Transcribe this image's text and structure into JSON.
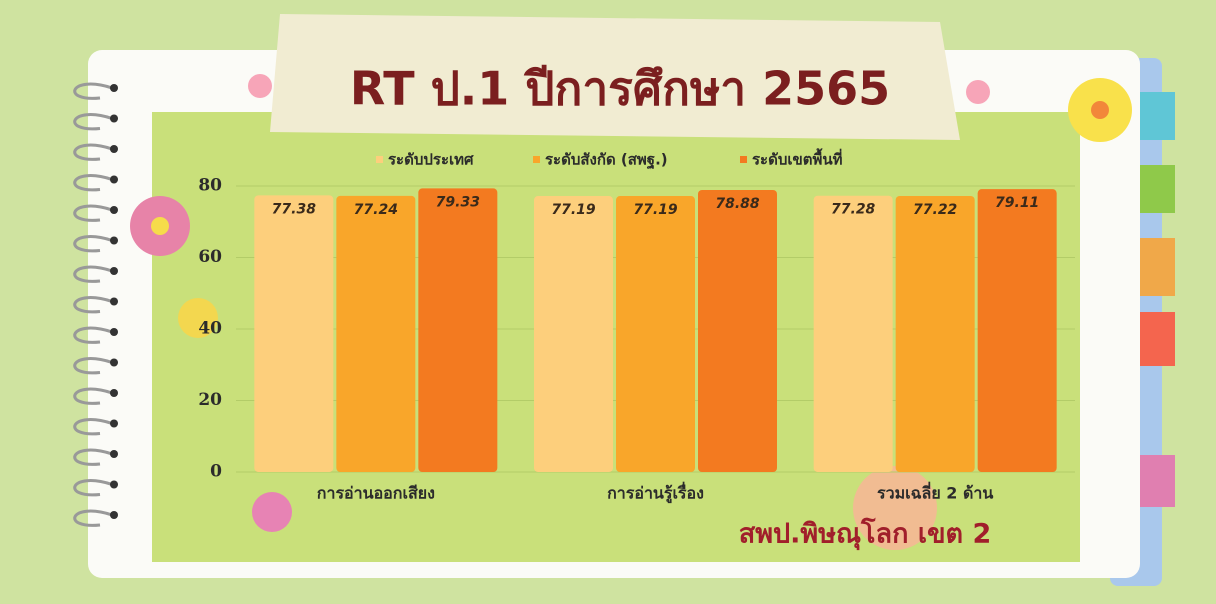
{
  "chart_data": {
    "type": "bar",
    "title": "RT ป.1 ปีการศึกษา 2565",
    "annotation": "สพป.พิษณุโลก เขต 2",
    "categories": [
      "การอ่านออกเสียง",
      "การอ่านรู้เรื่อง",
      "รวมเฉลี่ย 2 ด้าน"
    ],
    "series": [
      {
        "name": "ระดับประเทศ",
        "color": "#fdcf7c",
        "values": [
          77.38,
          77.19,
          77.28
        ]
      },
      {
        "name": "ระดับสังกัด (สพฐ.)",
        "color": "#f9a62a",
        "values": [
          77.24,
          77.19,
          77.22
        ]
      },
      {
        "name": "ระดับเขตพื้นที่",
        "color": "#f37a20",
        "values": [
          79.33,
          78.88,
          79.11
        ]
      }
    ],
    "ylim": [
      0,
      80
    ],
    "yticks": [
      0,
      20,
      40,
      60,
      80
    ],
    "grid": true
  }
}
